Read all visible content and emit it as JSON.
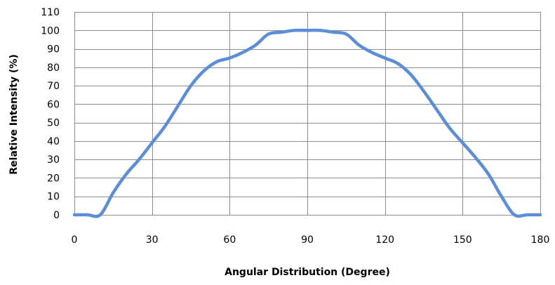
{
  "chart_data": {
    "type": "line",
    "title": "",
    "xlabel": "Angular Distribution (Degree)",
    "ylabel": "Relative Intensity (%)",
    "xlim": [
      0,
      180
    ],
    "ylim": [
      0,
      110
    ],
    "x_ticks": [
      0,
      30,
      60,
      90,
      120,
      150,
      180
    ],
    "y_ticks": [
      0,
      10,
      20,
      30,
      40,
      50,
      60,
      70,
      80,
      90,
      100,
      110
    ],
    "grid": true,
    "legend": "none",
    "series": [
      {
        "color": "#5B8ED6",
        "x": [
          0,
          5,
          10,
          15,
          20,
          25,
          30,
          35,
          40,
          45,
          50,
          55,
          60,
          65,
          70,
          75,
          80,
          85,
          90,
          95,
          100,
          105,
          110,
          115,
          120,
          125,
          130,
          135,
          140,
          145,
          150,
          155,
          160,
          165,
          170,
          175,
          180
        ],
        "y": [
          0,
          0,
          0,
          12,
          22,
          30,
          39,
          48,
          59,
          70,
          78,
          83,
          85,
          88,
          92,
          98,
          99,
          100,
          100,
          100,
          99,
          98,
          92,
          88,
          85,
          82,
          76,
          67,
          57,
          47,
          39,
          31,
          22,
          10,
          0,
          0,
          0
        ]
      }
    ]
  }
}
